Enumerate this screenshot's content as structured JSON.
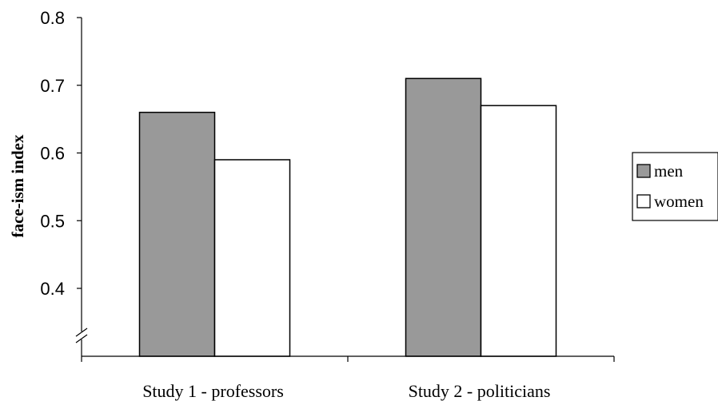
{
  "chart_data": {
    "type": "bar",
    "categories": [
      "Study 1 - professors",
      "Study 2 - politicians"
    ],
    "series": [
      {
        "name": "men",
        "values": [
          0.66,
          0.71
        ],
        "color": "#999999"
      },
      {
        "name": "women",
        "values": [
          0.59,
          0.67
        ],
        "color": "#ffffff"
      }
    ],
    "ylabel": "face-ism index",
    "xlabel": "",
    "ylim": [
      0.3,
      0.8
    ],
    "yticks": [
      0.4,
      0.5,
      0.6,
      0.7,
      0.8
    ],
    "ytick_labels": [
      "0.4",
      "0.5",
      "0.6",
      "0.7",
      "0.8"
    ],
    "axis_break": true,
    "grid": false,
    "legend_position": "right"
  }
}
